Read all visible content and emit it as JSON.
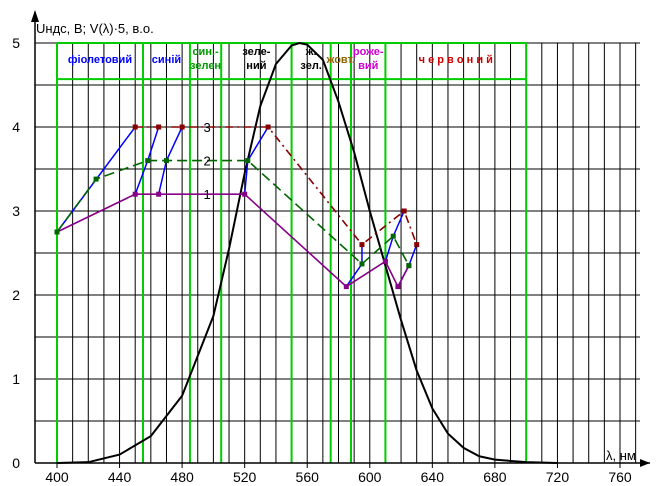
{
  "chart_data": {
    "type": "line",
    "ylabel": "Uндс, В;  V(λ)·5, в.о.",
    "xlabel": "λ, нм",
    "xlim": [
      400,
      780
    ],
    "ylim": [
      0,
      5
    ],
    "x_ticks": [
      400,
      440,
      480,
      520,
      560,
      600,
      640,
      680,
      720,
      760
    ],
    "y_ticks": [
      0,
      1,
      2,
      3,
      4,
      5
    ],
    "grid": true,
    "colors": {
      "band_lines": "#00cc00",
      "curve_v": "#000000",
      "series_1": "#880088",
      "series_2": "#006600",
      "series_3": "#880000",
      "connectors": "#0000ff"
    },
    "bands": [
      {
        "label": "фіолетовий",
        "from": 400,
        "to": 455,
        "color": "#0000ff"
      },
      {
        "label": "синій",
        "from": 455,
        "to": 485,
        "color": "#0000ff"
      },
      {
        "label": "син.-",
        "label2": "зелен",
        "from": 485,
        "to": 505,
        "color": "#009900"
      },
      {
        "label": "зеле-",
        "label2": "ний",
        "from": 505,
        "to": 550,
        "color": "#000000"
      },
      {
        "label": "ж.",
        "label2": "зел.",
        "from": 550,
        "to": 575,
        "color": "#000000"
      },
      {
        "label": "жовт.",
        "from": 575,
        "to": 588,
        "color": "#886600"
      },
      {
        "label": "роже-",
        "label2": "вий",
        "from": 588,
        "to": 610,
        "color": "#cc00cc"
      },
      {
        "label": "ч е р в о н и й",
        "from": 610,
        "to": 700,
        "color": "#cc0000"
      }
    ],
    "curve_v": {
      "peak_x": 555,
      "peak_y": 5.0,
      "points": [
        [
          400,
          0
        ],
        [
          420,
          0.01
        ],
        [
          440,
          0.1
        ],
        [
          460,
          0.32
        ],
        [
          480,
          0.8
        ],
        [
          500,
          1.75
        ],
        [
          510,
          2.55
        ],
        [
          520,
          3.45
        ],
        [
          530,
          4.25
        ],
        [
          540,
          4.75
        ],
        [
          550,
          4.97
        ],
        [
          555,
          5.0
        ],
        [
          560,
          4.98
        ],
        [
          570,
          4.8
        ],
        [
          580,
          4.3
        ],
        [
          590,
          3.7
        ],
        [
          600,
          3.0
        ],
        [
          610,
          2.35
        ],
        [
          620,
          1.7
        ],
        [
          630,
          1.1
        ],
        [
          640,
          0.65
        ],
        [
          650,
          0.35
        ],
        [
          660,
          0.18
        ],
        [
          670,
          0.08
        ],
        [
          680,
          0.04
        ],
        [
          700,
          0.01
        ],
        [
          720,
          0
        ]
      ]
    },
    "series": [
      {
        "name": "1",
        "points": [
          [
            400,
            2.75
          ],
          [
            450,
            3.2
          ],
          [
            465,
            3.2
          ],
          [
            520,
            3.2
          ],
          [
            585,
            2.1
          ],
          [
            610,
            2.4
          ],
          [
            618,
            2.1
          ],
          [
            625,
            2.35
          ]
        ]
      },
      {
        "name": "2",
        "points": [
          [
            400,
            2.75
          ],
          [
            425,
            3.38
          ],
          [
            458,
            3.6
          ],
          [
            470,
            3.6
          ],
          [
            522,
            3.6
          ],
          [
            595,
            2.37
          ],
          [
            615,
            2.7
          ],
          [
            625,
            2.35
          ]
        ]
      },
      {
        "name": "3",
        "points": [
          [
            450,
            4.0
          ],
          [
            465,
            4.0
          ],
          [
            480,
            4.0
          ],
          [
            535,
            4.0
          ],
          [
            595,
            2.6
          ],
          [
            622,
            3.0
          ],
          [
            630,
            2.6
          ]
        ]
      }
    ],
    "series_label_positions": {
      "1": [
        3.2
      ],
      "2": [
        3.6
      ],
      "3": [
        4.0
      ]
    },
    "connector_segments": [
      [
        [
          400,
          2.75
        ],
        [
          450,
          4.0
        ]
      ],
      [
        [
          450,
          3.2
        ],
        [
          458,
          3.6
        ],
        [
          465,
          4.0
        ]
      ],
      [
        [
          465,
          3.2
        ],
        [
          470,
          3.6
        ],
        [
          480,
          4.0
        ]
      ],
      [
        [
          520,
          3.2
        ],
        [
          522,
          3.6
        ],
        [
          535,
          4.0
        ]
      ],
      [
        [
          585,
          2.1
        ],
        [
          595,
          2.37
        ],
        [
          595,
          2.6
        ]
      ],
      [
        [
          610,
          2.4
        ],
        [
          615,
          2.7
        ],
        [
          622,
          3.0
        ]
      ],
      [
        [
          618,
          2.1
        ],
        [
          625,
          2.35
        ],
        [
          630,
          2.6
        ]
      ]
    ]
  }
}
